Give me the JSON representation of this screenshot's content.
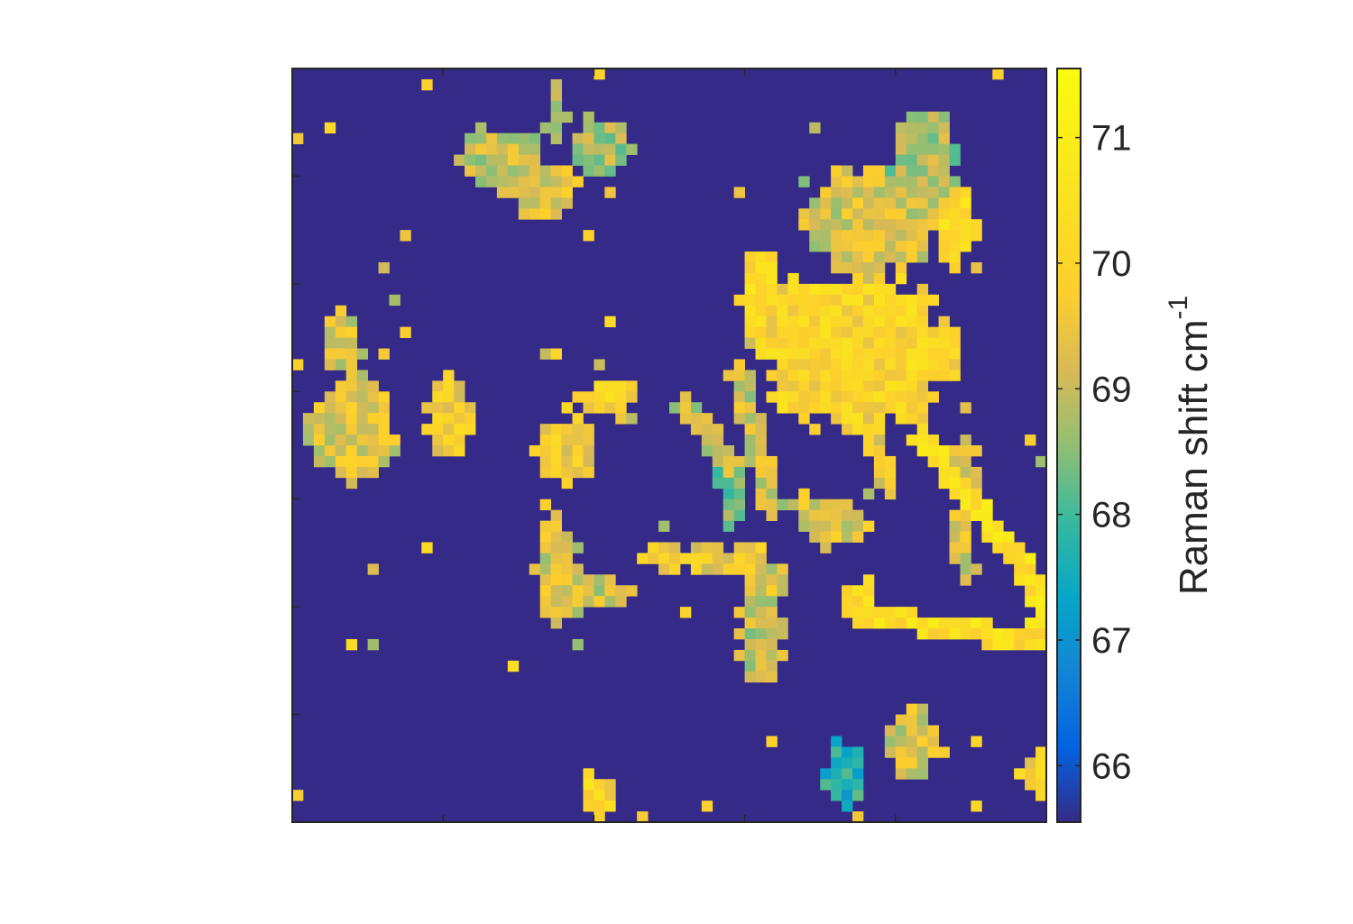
{
  "chart_data": {
    "type": "heatmap",
    "title": "",
    "xlabel": "",
    "ylabel": "",
    "grid": false,
    "x_tick_labels": [],
    "y_tick_labels": [],
    "colormap": "parula",
    "colorbar": {
      "label": "Raman shift cm",
      "label_superscript": "-1",
      "range": [
        65.55,
        71.55
      ],
      "ticks": [
        66,
        67,
        68,
        69,
        70,
        71
      ],
      "tick_labels": [
        "66",
        "67",
        "68",
        "69",
        "70",
        "71"
      ],
      "placement": "right"
    },
    "background_value": 65.55,
    "grid_size": [
      70,
      70
    ],
    "approx_value_range_shown": [
      66,
      71.5
    ]
  }
}
